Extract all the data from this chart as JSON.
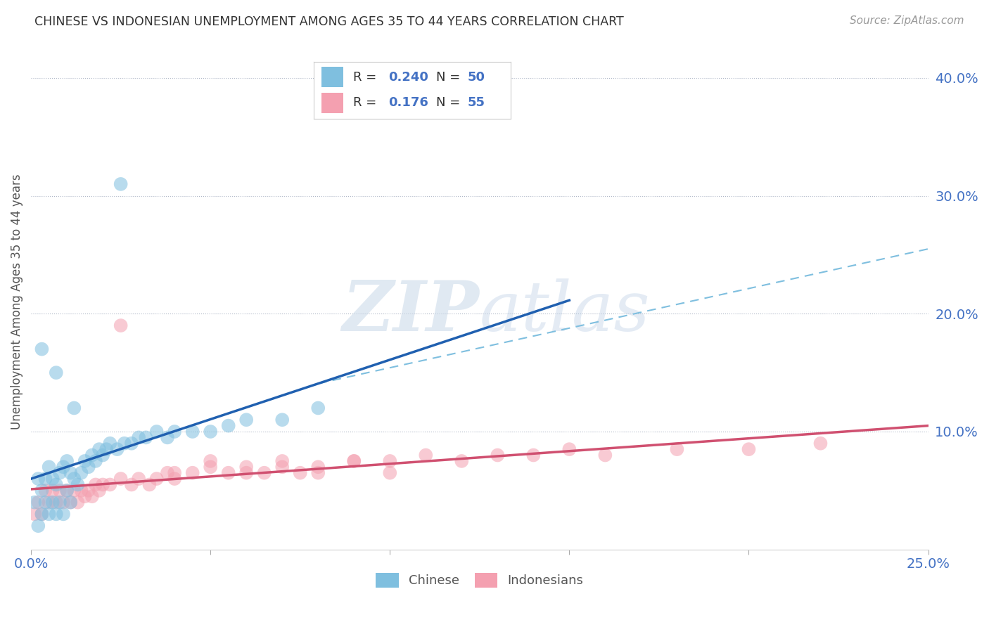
{
  "title": "CHINESE VS INDONESIAN UNEMPLOYMENT AMONG AGES 35 TO 44 YEARS CORRELATION CHART",
  "source": "Source: ZipAtlas.com",
  "ylabel": "Unemployment Among Ages 35 to 44 years",
  "xlim": [
    0.0,
    0.25
  ],
  "ylim": [
    0.0,
    0.42
  ],
  "xticks": [
    0.0,
    0.05,
    0.1,
    0.15,
    0.2,
    0.25
  ],
  "xticklabels": [
    "0.0%",
    "",
    "",
    "",
    "",
    "25.0%"
  ],
  "yticks": [
    0.1,
    0.2,
    0.3,
    0.4
  ],
  "yticklabels": [
    "10.0%",
    "20.0%",
    "30.0%",
    "40.0%"
  ],
  "chinese_color": "#7fbfdf",
  "indonesian_color": "#f4a0b0",
  "chinese_line_color": "#2060b0",
  "indonesian_line_color": "#d05070",
  "R_chinese": 0.24,
  "N_chinese": 50,
  "R_indonesian": 0.176,
  "N_indonesian": 55,
  "watermark_zip": "ZIP",
  "watermark_atlas": "atlas",
  "background_color": "#ffffff",
  "chinese_x": [
    0.001,
    0.002,
    0.002,
    0.003,
    0.003,
    0.004,
    0.004,
    0.005,
    0.005,
    0.006,
    0.006,
    0.007,
    0.007,
    0.008,
    0.008,
    0.009,
    0.009,
    0.01,
    0.01,
    0.011,
    0.011,
    0.012,
    0.013,
    0.014,
    0.015,
    0.016,
    0.017,
    0.018,
    0.019,
    0.02,
    0.021,
    0.022,
    0.024,
    0.026,
    0.028,
    0.03,
    0.032,
    0.035,
    0.038,
    0.04,
    0.045,
    0.05,
    0.055,
    0.06,
    0.07,
    0.08,
    0.003,
    0.007,
    0.012,
    0.025
  ],
  "chinese_y": [
    0.04,
    0.02,
    0.06,
    0.03,
    0.05,
    0.04,
    0.06,
    0.03,
    0.07,
    0.04,
    0.06,
    0.03,
    0.055,
    0.04,
    0.065,
    0.03,
    0.07,
    0.05,
    0.075,
    0.04,
    0.065,
    0.06,
    0.055,
    0.065,
    0.075,
    0.07,
    0.08,
    0.075,
    0.085,
    0.08,
    0.085,
    0.09,
    0.085,
    0.09,
    0.09,
    0.095,
    0.095,
    0.1,
    0.095,
    0.1,
    0.1,
    0.1,
    0.105,
    0.11,
    0.11,
    0.12,
    0.17,
    0.15,
    0.12,
    0.31
  ],
  "indonesian_x": [
    0.001,
    0.002,
    0.003,
    0.004,
    0.005,
    0.006,
    0.007,
    0.008,
    0.009,
    0.01,
    0.011,
    0.012,
    0.013,
    0.014,
    0.015,
    0.016,
    0.017,
    0.018,
    0.019,
    0.02,
    0.022,
    0.025,
    0.028,
    0.03,
    0.033,
    0.035,
    0.038,
    0.04,
    0.045,
    0.05,
    0.055,
    0.06,
    0.065,
    0.07,
    0.075,
    0.08,
    0.09,
    0.1,
    0.11,
    0.12,
    0.13,
    0.14,
    0.15,
    0.16,
    0.18,
    0.2,
    0.22,
    0.025,
    0.04,
    0.05,
    0.06,
    0.07,
    0.08,
    0.09,
    0.1
  ],
  "indonesian_y": [
    0.03,
    0.04,
    0.03,
    0.05,
    0.04,
    0.05,
    0.04,
    0.05,
    0.04,
    0.05,
    0.04,
    0.05,
    0.04,
    0.05,
    0.045,
    0.05,
    0.045,
    0.055,
    0.05,
    0.055,
    0.055,
    0.06,
    0.055,
    0.06,
    0.055,
    0.06,
    0.065,
    0.06,
    0.065,
    0.07,
    0.065,
    0.07,
    0.065,
    0.07,
    0.065,
    0.07,
    0.075,
    0.075,
    0.08,
    0.075,
    0.08,
    0.08,
    0.085,
    0.08,
    0.085,
    0.085,
    0.09,
    0.19,
    0.065,
    0.075,
    0.065,
    0.075,
    0.065,
    0.075,
    0.065
  ]
}
